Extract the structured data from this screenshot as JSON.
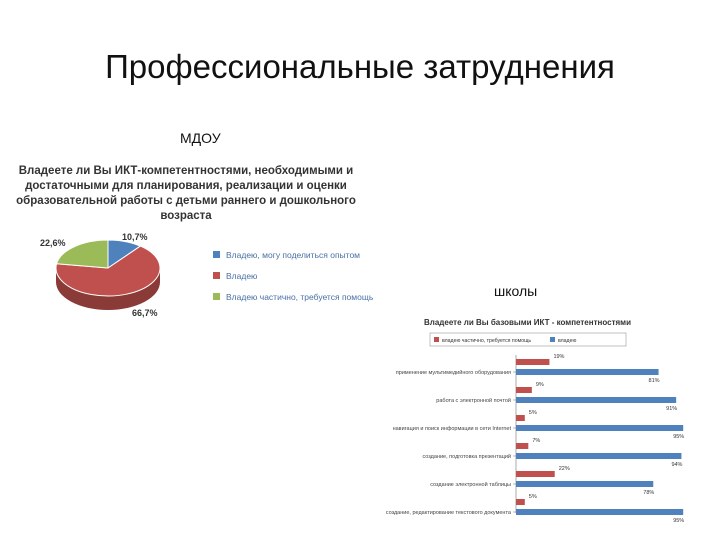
{
  "slide": {
    "title": "Профессиональные затруднения"
  },
  "labels": {
    "mdou": "МДОУ",
    "schools": "школы"
  },
  "chart_data": [
    {
      "type": "pie",
      "title": "Владеете ли Вы ИКТ-компетентностями, необходимыми и достаточными для планирования, реализации и оценки образовательной работы с детьми раннего и дошкольного возраста",
      "slices": [
        {
          "label": "Владею, могу поделиться опытом",
          "value": 10.7,
          "value_label": "10,7%",
          "color": "#4f81bd"
        },
        {
          "label": "Владею",
          "value": 66.7,
          "value_label": "66,7%",
          "color": "#c0504d"
        },
        {
          "label": "Владею частично, требуется помощь",
          "value": 22.6,
          "value_label": "22,6%",
          "color": "#9bbb59"
        }
      ],
      "legend_position": "right"
    },
    {
      "type": "bar",
      "orientation": "horizontal",
      "title": "Владеете ли Вы базовыми ИКТ - компетентностями",
      "categories": [
        "применение мультимедийного оборудования",
        "работа с электронной почтой",
        "навигация и поиск информации в сети Internet",
        "создание, подготовка презентаций",
        "создание электронной таблицы",
        "создание, редактирование текстового документа"
      ],
      "series": [
        {
          "name": "владею частично, требуется помощь",
          "color": "#c0504d",
          "values": [
            19,
            9,
            5,
            7,
            22,
            5
          ],
          "value_labels": [
            "19%",
            "9%",
            "5%",
            "7%",
            "22%",
            "5%"
          ]
        },
        {
          "name": "владею",
          "color": "#4f81bd",
          "values": [
            81,
            91,
            95,
            94,
            78,
            95
          ],
          "value_labels": [
            "81%",
            "91%",
            "95%",
            "94%",
            "78%",
            "95%"
          ]
        }
      ],
      "legend_position": "top",
      "xlim": [
        0,
        100
      ]
    }
  ]
}
